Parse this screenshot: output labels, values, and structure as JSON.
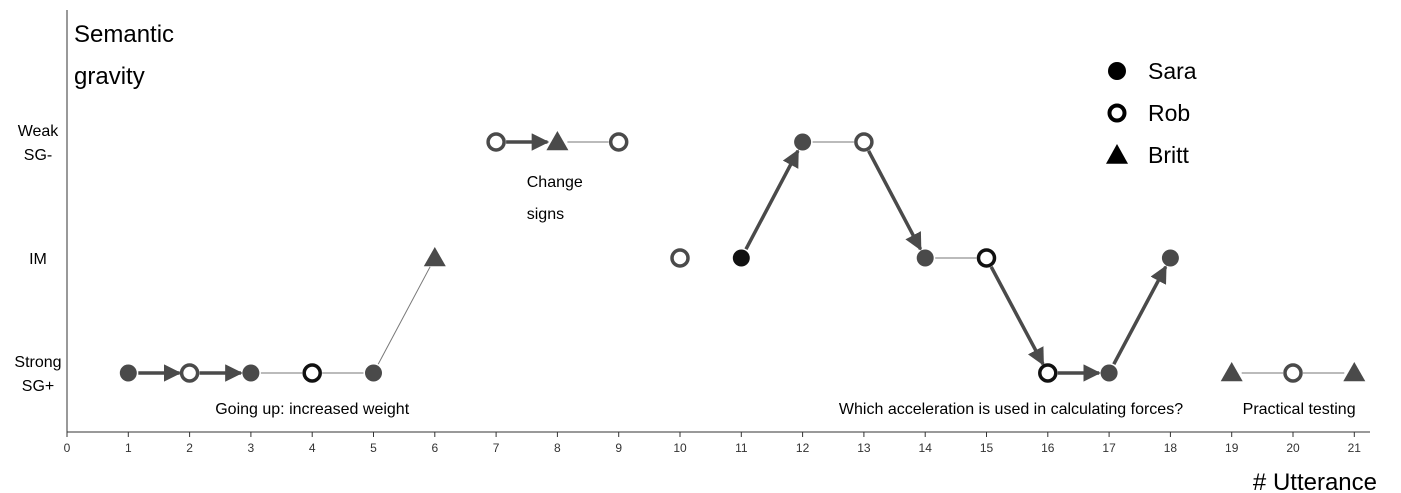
{
  "chart_data": {
    "type": "scatter",
    "title": "Semantic gravity",
    "title_lines": [
      "Semantic",
      "gravity"
    ],
    "xlabel": "# Utterance",
    "xlim": [
      0,
      21
    ],
    "x_ticks": [
      "0",
      "1",
      "2",
      "3",
      "4",
      "5",
      "6",
      "7",
      "8",
      "9",
      "10",
      "11",
      "12",
      "13",
      "14",
      "15",
      "16",
      "17",
      "18",
      "19",
      "20",
      "21"
    ],
    "y_levels": [
      {
        "name": "Strong SG+",
        "lines": [
          "Strong",
          "SG+"
        ],
        "value": 1
      },
      {
        "name": "IM",
        "lines": [
          "IM"
        ],
        "value": 2
      },
      {
        "name": "Weak SG-",
        "lines": [
          "Weak",
          "SG-"
        ],
        "value": 3
      }
    ],
    "legend": {
      "position": "top-right",
      "entries": [
        {
          "name": "Sara",
          "marker": "filled-circle"
        },
        {
          "name": "Rob",
          "marker": "open-circle"
        },
        {
          "name": "Britt",
          "marker": "triangle"
        }
      ]
    },
    "points": [
      {
        "x": 1,
        "y": 1,
        "marker": "filled-circle",
        "color": "#4a4a4a"
      },
      {
        "x": 2,
        "y": 1,
        "marker": "open-circle",
        "color": "#4a4a4a"
      },
      {
        "x": 3,
        "y": 1,
        "marker": "filled-circle",
        "color": "#4a4a4a"
      },
      {
        "x": 4,
        "y": 1,
        "marker": "open-circle",
        "color": "#111111"
      },
      {
        "x": 5,
        "y": 1,
        "marker": "filled-circle",
        "color": "#4a4a4a"
      },
      {
        "x": 6,
        "y": 2,
        "marker": "triangle",
        "color": "#4a4a4a"
      },
      {
        "x": 7,
        "y": 3,
        "marker": "open-circle",
        "color": "#4a4a4a"
      },
      {
        "x": 8,
        "y": 3,
        "marker": "triangle",
        "color": "#4a4a4a"
      },
      {
        "x": 9,
        "y": 3,
        "marker": "open-circle",
        "color": "#4a4a4a"
      },
      {
        "x": 10,
        "y": 2,
        "marker": "open-circle",
        "color": "#4a4a4a"
      },
      {
        "x": 11,
        "y": 2,
        "marker": "filled-circle",
        "color": "#111111"
      },
      {
        "x": 12,
        "y": 3,
        "marker": "filled-circle",
        "color": "#4a4a4a"
      },
      {
        "x": 13,
        "y": 3,
        "marker": "open-circle",
        "color": "#4a4a4a"
      },
      {
        "x": 14,
        "y": 2,
        "marker": "filled-circle",
        "color": "#4a4a4a"
      },
      {
        "x": 15,
        "y": 2,
        "marker": "open-circle",
        "color": "#111111"
      },
      {
        "x": 16,
        "y": 1,
        "marker": "open-circle",
        "color": "#111111"
      },
      {
        "x": 17,
        "y": 1,
        "marker": "filled-circle",
        "color": "#4a4a4a"
      },
      {
        "x": 18,
        "y": 2,
        "marker": "filled-circle",
        "color": "#4a4a4a"
      },
      {
        "x": 19,
        "y": 1,
        "marker": "triangle",
        "color": "#4a4a4a"
      },
      {
        "x": 20,
        "y": 1,
        "marker": "open-circle",
        "color": "#4a4a4a"
      },
      {
        "x": 21,
        "y": 1,
        "marker": "triangle",
        "color": "#4a4a4a"
      }
    ],
    "connections": [
      {
        "from": 1,
        "to": 2,
        "style": "arrow"
      },
      {
        "from": 2,
        "to": 3,
        "style": "arrow"
      },
      {
        "from": 3,
        "to": 4,
        "style": "line"
      },
      {
        "from": 4,
        "to": 5,
        "style": "line"
      },
      {
        "from": 5,
        "to": 6,
        "style": "line"
      },
      {
        "from": 7,
        "to": 8,
        "style": "arrow"
      },
      {
        "from": 8,
        "to": 9,
        "style": "line"
      },
      {
        "from": 11,
        "to": 12,
        "style": "arrow"
      },
      {
        "from": 12,
        "to": 13,
        "style": "line"
      },
      {
        "from": 13,
        "to": 14,
        "style": "arrow"
      },
      {
        "from": 14,
        "to": 15,
        "style": "line"
      },
      {
        "from": 15,
        "to": 16,
        "style": "arrow"
      },
      {
        "from": 16,
        "to": 17,
        "style": "arrow"
      },
      {
        "from": 17,
        "to": 18,
        "style": "arrow"
      },
      {
        "from": 19,
        "to": 20,
        "style": "line"
      },
      {
        "from": 20,
        "to": 21,
        "style": "line"
      }
    ],
    "annotations": [
      {
        "lines": [
          "Going up: increased weight"
        ],
        "x": 4,
        "y": 1,
        "anchor": "middle"
      },
      {
        "lines": [
          "Change",
          "signs"
        ],
        "x": 7.5,
        "y": 3,
        "anchor": "start"
      },
      {
        "lines": [
          "Which acceleration is used in calculating forces?"
        ],
        "x": 15.4,
        "y": 1,
        "anchor": "middle"
      },
      {
        "lines": [
          "Practical testing"
        ],
        "x": 20.1,
        "y": 1,
        "anchor": "middle"
      }
    ]
  }
}
